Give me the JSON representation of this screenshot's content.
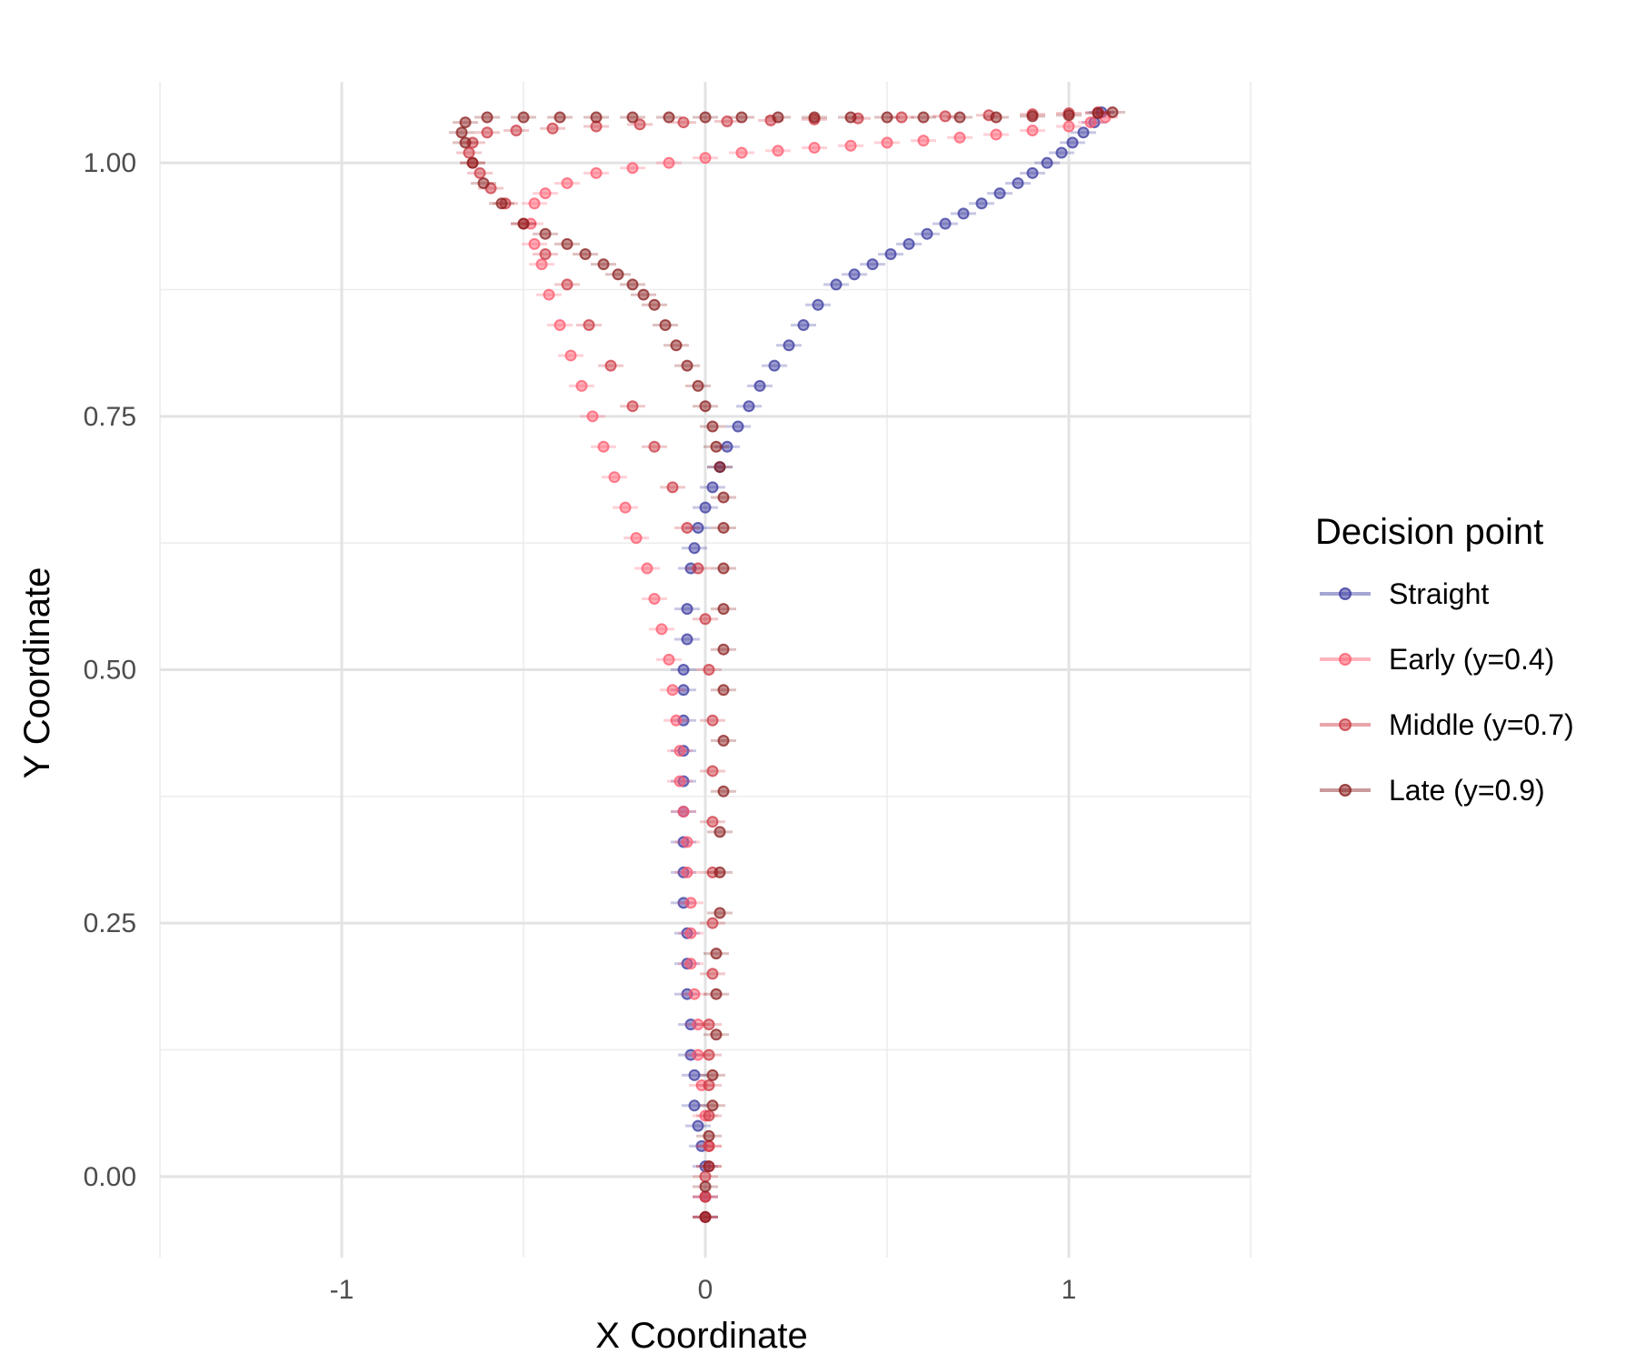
{
  "chart_data": {
    "type": "scatter",
    "title": "",
    "xlabel": "X Coordinate",
    "ylabel": "Y Coordinate",
    "xlim": [
      -1.5,
      1.5
    ],
    "ylim": [
      -0.08,
      1.08
    ],
    "x_ticks": [
      -1,
      0,
      1
    ],
    "x_tick_labels": [
      "-1",
      "0",
      "1"
    ],
    "y_ticks": [
      0,
      0.25,
      0.5,
      0.75,
      1.0
    ],
    "y_tick_labels": [
      "0.00",
      "0.25",
      "0.50",
      "0.75",
      "1.00"
    ],
    "grid": true,
    "legend": {
      "title": "Decision point",
      "position": "right"
    },
    "series": [
      {
        "name": "Straight",
        "color": "#3a3aa0",
        "x": [
          0.0,
          0.0,
          0.0,
          -0.01,
          -0.02,
          -0.03,
          -0.03,
          -0.04,
          -0.04,
          -0.05,
          -0.05,
          -0.05,
          -0.06,
          -0.06,
          -0.06,
          -0.06,
          -0.06,
          -0.06,
          -0.06,
          -0.06,
          -0.06,
          -0.05,
          -0.05,
          -0.04,
          -0.03,
          -0.02,
          0.0,
          0.02,
          0.04,
          0.06,
          0.09,
          0.12,
          0.15,
          0.19,
          0.23,
          0.27,
          0.31,
          0.36,
          0.41,
          0.46,
          0.51,
          0.56,
          0.61,
          0.66,
          0.71,
          0.76,
          0.81,
          0.86,
          0.9,
          0.94,
          0.98,
          1.01,
          1.04,
          1.07,
          1.09
        ],
        "y": [
          -0.04,
          -0.02,
          0.01,
          0.03,
          0.05,
          0.07,
          0.1,
          0.12,
          0.15,
          0.18,
          0.21,
          0.24,
          0.27,
          0.3,
          0.33,
          0.36,
          0.39,
          0.42,
          0.45,
          0.48,
          0.5,
          0.53,
          0.56,
          0.6,
          0.62,
          0.64,
          0.66,
          0.68,
          0.7,
          0.72,
          0.74,
          0.76,
          0.78,
          0.8,
          0.82,
          0.84,
          0.86,
          0.88,
          0.89,
          0.9,
          0.91,
          0.92,
          0.93,
          0.94,
          0.95,
          0.96,
          0.97,
          0.98,
          0.99,
          1.0,
          1.01,
          1.02,
          1.03,
          1.04,
          1.05
        ]
      },
      {
        "name": "Early (y=0.4)",
        "color": "#ff5a6e",
        "x": [
          0.0,
          0.0,
          0.01,
          0.01,
          0.0,
          -0.01,
          -0.02,
          -0.02,
          -0.03,
          -0.04,
          -0.04,
          -0.04,
          -0.05,
          -0.05,
          -0.06,
          -0.07,
          -0.07,
          -0.08,
          -0.09,
          -0.1,
          -0.12,
          -0.14,
          -0.16,
          -0.19,
          -0.22,
          -0.25,
          -0.28,
          -0.31,
          -0.34,
          -0.37,
          -0.4,
          -0.43,
          -0.45,
          -0.47,
          -0.48,
          -0.47,
          -0.44,
          -0.38,
          -0.3,
          -0.2,
          -0.1,
          0.0,
          0.1,
          0.2,
          0.3,
          0.4,
          0.5,
          0.6,
          0.7,
          0.8,
          0.9,
          1.0,
          1.06,
          1.1
        ],
        "y": [
          -0.04,
          -0.02,
          0.01,
          0.03,
          0.06,
          0.09,
          0.12,
          0.15,
          0.18,
          0.21,
          0.24,
          0.27,
          0.3,
          0.33,
          0.36,
          0.39,
          0.42,
          0.45,
          0.48,
          0.51,
          0.54,
          0.57,
          0.6,
          0.63,
          0.66,
          0.69,
          0.72,
          0.75,
          0.78,
          0.81,
          0.84,
          0.87,
          0.9,
          0.92,
          0.94,
          0.96,
          0.97,
          0.98,
          0.99,
          0.995,
          1.0,
          1.005,
          1.01,
          1.012,
          1.015,
          1.017,
          1.02,
          1.022,
          1.025,
          1.028,
          1.032,
          1.036,
          1.04,
          1.045
        ]
      },
      {
        "name": "Middle (y=0.7)",
        "color": "#cc3a44",
        "x": [
          0.0,
          0.0,
          0.0,
          0.01,
          0.01,
          0.01,
          0.01,
          0.01,
          0.02,
          0.02,
          0.02,
          0.02,
          0.02,
          0.02,
          0.01,
          0.0,
          -0.02,
          -0.05,
          -0.09,
          -0.14,
          -0.2,
          -0.26,
          -0.32,
          -0.38,
          -0.44,
          -0.5,
          -0.55,
          -0.59,
          -0.62,
          -0.64,
          -0.65,
          -0.64,
          -0.6,
          -0.52,
          -0.42,
          -0.3,
          -0.18,
          -0.06,
          0.06,
          0.18,
          0.3,
          0.42,
          0.54,
          0.66,
          0.78,
          0.9,
          1.0,
          1.08
        ],
        "y": [
          -0.04,
          -0.02,
          0.0,
          0.03,
          0.06,
          0.09,
          0.12,
          0.15,
          0.2,
          0.25,
          0.3,
          0.35,
          0.4,
          0.45,
          0.5,
          0.55,
          0.6,
          0.64,
          0.68,
          0.72,
          0.76,
          0.8,
          0.84,
          0.88,
          0.91,
          0.94,
          0.96,
          0.975,
          0.99,
          1.0,
          1.01,
          1.02,
          1.03,
          1.032,
          1.034,
          1.036,
          1.038,
          1.04,
          1.041,
          1.042,
          1.043,
          1.044,
          1.045,
          1.046,
          1.047,
          1.048,
          1.049,
          1.05
        ]
      },
      {
        "name": "Late (y=0.9)",
        "color": "#8b1f1f",
        "x": [
          0.0,
          0.0,
          0.01,
          0.01,
          0.02,
          0.02,
          0.03,
          0.03,
          0.03,
          0.04,
          0.04,
          0.04,
          0.05,
          0.05,
          0.05,
          0.05,
          0.05,
          0.05,
          0.05,
          0.05,
          0.04,
          0.03,
          0.02,
          0.0,
          -0.02,
          -0.05,
          -0.08,
          -0.11,
          -0.14,
          -0.17,
          -0.2,
          -0.24,
          -0.28,
          -0.33,
          -0.38,
          -0.44,
          -0.5,
          -0.56,
          -0.61,
          -0.64,
          -0.66,
          -0.67,
          -0.66,
          -0.6,
          -0.5,
          -0.4,
          -0.3,
          -0.2,
          -0.1,
          0.0,
          0.1,
          0.2,
          0.3,
          0.4,
          0.5,
          0.6,
          0.7,
          0.8,
          0.9,
          1.0,
          1.08,
          1.12
        ],
        "y": [
          -0.04,
          -0.01,
          0.01,
          0.04,
          0.07,
          0.1,
          0.14,
          0.18,
          0.22,
          0.26,
          0.3,
          0.34,
          0.38,
          0.43,
          0.48,
          0.52,
          0.56,
          0.6,
          0.64,
          0.67,
          0.7,
          0.72,
          0.74,
          0.76,
          0.78,
          0.8,
          0.82,
          0.84,
          0.86,
          0.87,
          0.88,
          0.89,
          0.9,
          0.91,
          0.92,
          0.93,
          0.94,
          0.96,
          0.98,
          1.0,
          1.02,
          1.03,
          1.04,
          1.045,
          1.045,
          1.045,
          1.045,
          1.045,
          1.045,
          1.045,
          1.045,
          1.045,
          1.045,
          1.045,
          1.045,
          1.045,
          1.045,
          1.045,
          1.046,
          1.047,
          1.049,
          1.05
        ]
      }
    ]
  }
}
